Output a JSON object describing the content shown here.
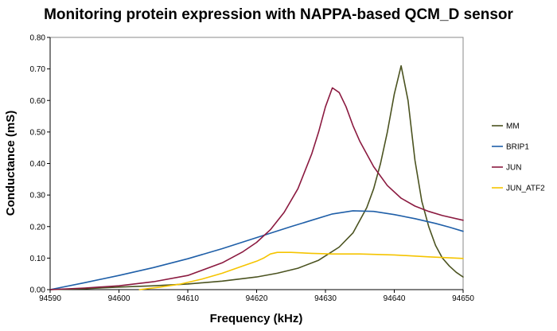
{
  "chart_data": {
    "type": "line",
    "title": "Monitoring protein expression with NAPPA-based QCM_D sensor",
    "xlabel": "Frequency (kHz)",
    "ylabel": "Conductance (mS)",
    "xlim": [
      94590,
      94650
    ],
    "ylim": [
      0,
      0.8
    ],
    "x_ticks": [
      "94590",
      "94600",
      "94610",
      "94620",
      "94630",
      "94640",
      "94650"
    ],
    "y_ticks": [
      "0.00",
      "0.10",
      "0.20",
      "0.30",
      "0.40",
      "0.50",
      "0.60",
      "0.70",
      "0.80"
    ],
    "grid": false,
    "legend_position": "right",
    "series": [
      {
        "name": "MM",
        "color": "#4B5320",
        "points": [
          [
            94590,
            0.0
          ],
          [
            94595,
            0.003
          ],
          [
            94600,
            0.008
          ],
          [
            94605,
            0.012
          ],
          [
            94610,
            0.018
          ],
          [
            94615,
            0.027
          ],
          [
            94620,
            0.04
          ],
          [
            94623,
            0.052
          ],
          [
            94626,
            0.068
          ],
          [
            94629,
            0.093
          ],
          [
            94632,
            0.135
          ],
          [
            94634,
            0.18
          ],
          [
            94636,
            0.26
          ],
          [
            94637,
            0.32
          ],
          [
            94638,
            0.4
          ],
          [
            94639,
            0.5
          ],
          [
            94640,
            0.62
          ],
          [
            94641,
            0.71
          ],
          [
            94642,
            0.6
          ],
          [
            94643,
            0.41
          ],
          [
            94644,
            0.28
          ],
          [
            94645,
            0.2
          ],
          [
            94646,
            0.14
          ],
          [
            94647,
            0.1
          ],
          [
            94648,
            0.075
          ],
          [
            94649,
            0.055
          ],
          [
            94650,
            0.04
          ]
        ]
      },
      {
        "name": "BRIP1",
        "color": "#1F5FA8",
        "points": [
          [
            94590,
            0.0
          ],
          [
            94595,
            0.022
          ],
          [
            94600,
            0.045
          ],
          [
            94605,
            0.07
          ],
          [
            94610,
            0.098
          ],
          [
            94615,
            0.13
          ],
          [
            94620,
            0.165
          ],
          [
            94625,
            0.2
          ],
          [
            94628,
            0.22
          ],
          [
            94631,
            0.24
          ],
          [
            94634,
            0.25
          ],
          [
            94637,
            0.248
          ],
          [
            94640,
            0.238
          ],
          [
            94643,
            0.225
          ],
          [
            94646,
            0.21
          ],
          [
            94648,
            0.198
          ],
          [
            94650,
            0.185
          ]
        ]
      },
      {
        "name": "JUN",
        "color": "#8B1A40",
        "points": [
          [
            94590,
            0.0
          ],
          [
            94595,
            0.005
          ],
          [
            94600,
            0.012
          ],
          [
            94605,
            0.025
          ],
          [
            94610,
            0.045
          ],
          [
            94615,
            0.085
          ],
          [
            94618,
            0.12
          ],
          [
            94620,
            0.15
          ],
          [
            94622,
            0.19
          ],
          [
            94624,
            0.245
          ],
          [
            94626,
            0.32
          ],
          [
            94628,
            0.43
          ],
          [
            94629,
            0.5
          ],
          [
            94630,
            0.58
          ],
          [
            94631,
            0.64
          ],
          [
            94632,
            0.625
          ],
          [
            94633,
            0.58
          ],
          [
            94634,
            0.52
          ],
          [
            94635,
            0.47
          ],
          [
            94637,
            0.39
          ],
          [
            94639,
            0.33
          ],
          [
            94641,
            0.29
          ],
          [
            94643,
            0.265
          ],
          [
            94645,
            0.248
          ],
          [
            94647,
            0.235
          ],
          [
            94650,
            0.22
          ]
        ]
      },
      {
        "name": "JUN_ATF2",
        "color": "#F5C400",
        "points": [
          [
            94603,
            0.0
          ],
          [
            94606,
            0.008
          ],
          [
            94609,
            0.018
          ],
          [
            94612,
            0.033
          ],
          [
            94615,
            0.052
          ],
          [
            94618,
            0.075
          ],
          [
            94620,
            0.09
          ],
          [
            94621,
            0.1
          ],
          [
            94622,
            0.113
          ],
          [
            94623,
            0.118
          ],
          [
            94625,
            0.118
          ],
          [
            94628,
            0.115
          ],
          [
            94631,
            0.113
          ],
          [
            94635,
            0.113
          ],
          [
            94640,
            0.11
          ],
          [
            94645,
            0.104
          ],
          [
            94650,
            0.099
          ]
        ]
      }
    ]
  }
}
